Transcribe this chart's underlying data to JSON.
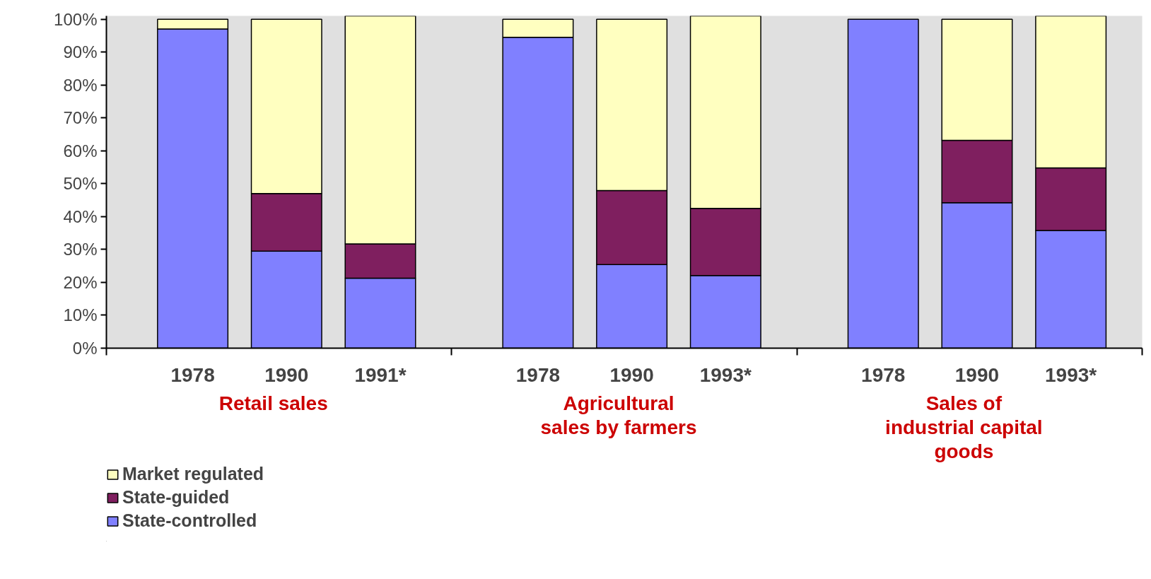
{
  "chart_data": {
    "type": "bar",
    "stacked": true,
    "categories": [
      "1978",
      "1990",
      "1991*",
      "1978",
      "1990",
      "1993*",
      "1978",
      "1990",
      "1993*"
    ],
    "series": [
      {
        "name": "State-controlled",
        "color": "#8080ff",
        "values": [
          97,
          29.5,
          21.3,
          94.5,
          25.4,
          22.1,
          100,
          44.2,
          35.8
        ]
      },
      {
        "name": "State-guided",
        "color": "#7f1f5f",
        "values": [
          0,
          17.5,
          10.4,
          0,
          22.5,
          20.4,
          0,
          19,
          19
        ]
      },
      {
        "name": "Market regulated",
        "color": "#ffffc0",
        "values": [
          3,
          53,
          69.3,
          5.5,
          52.1,
          58.5,
          0,
          36.8,
          46.2
        ]
      }
    ],
    "ylim": [
      0,
      101
    ],
    "yticks": [
      {
        "value": 0,
        "label": "0%"
      },
      {
        "value": 10,
        "label": "10%"
      },
      {
        "value": 20,
        "label": "20%"
      },
      {
        "value": 30,
        "label": "30%"
      },
      {
        "value": 40,
        "label": "40%"
      },
      {
        "value": 50,
        "label": "50%"
      },
      {
        "value": 60,
        "label": "60%"
      },
      {
        "value": 70,
        "label": "70%"
      },
      {
        "value": 80,
        "label": "80%"
      },
      {
        "value": 90,
        "label": "90%"
      },
      {
        "value": 100,
        "label": "100%"
      }
    ],
    "annotations": [
      "Retail sales",
      "Agricultural\nsales by farmers",
      "Sales of\nindustrial capital\ngoods"
    ],
    "grid": false,
    "legend": "bottom left"
  }
}
